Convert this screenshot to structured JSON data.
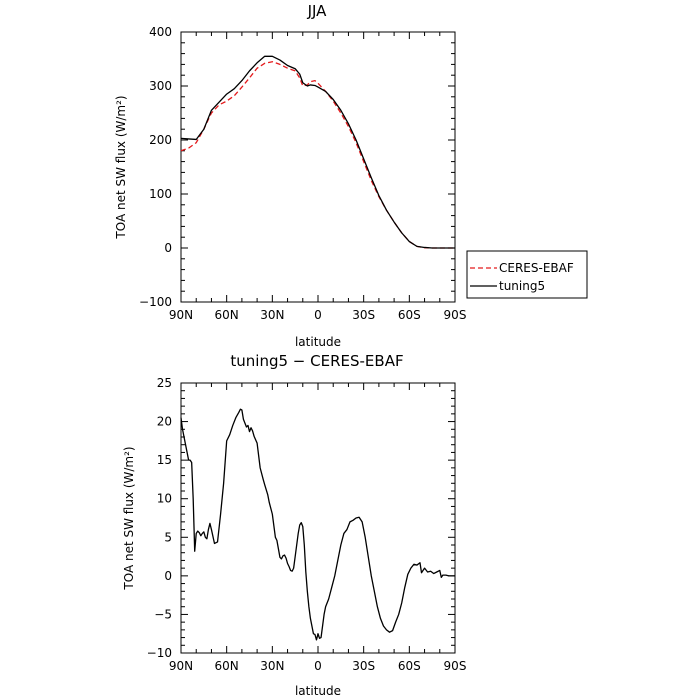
{
  "chart_data": [
    {
      "type": "line",
      "title": "JJA",
      "xlabel": "latitude",
      "ylabel": "TOA net SW flux (W/m²)",
      "xlim": [
        90,
        -90
      ],
      "ylim": [
        -100,
        400
      ],
      "xticks": [
        90,
        60,
        30,
        0,
        -30,
        -60,
        -90
      ],
      "xticklabels": [
        "90N",
        "60N",
        "30N",
        "0",
        "30S",
        "60S",
        "90S"
      ],
      "yticks": [
        -100,
        0,
        100,
        200,
        300,
        400
      ],
      "yticklabels": [
        "−100",
        "0",
        "100",
        "200",
        "300",
        "400"
      ],
      "grid": false,
      "legend": "right",
      "series": [
        {
          "name": "CERES-EBAF",
          "color": "#e41a1c",
          "dash": "dashed",
          "x": [
            90,
            85,
            80,
            75,
            70,
            65,
            60,
            55,
            50,
            45,
            40,
            35,
            30,
            25,
            20,
            15,
            12,
            10,
            7,
            5,
            2,
            0,
            -5,
            -10,
            -15,
            -20,
            -25,
            -30,
            -35,
            -40,
            -45,
            -50,
            -55,
            -60,
            -65,
            -70,
            -75,
            -80,
            -85,
            -90
          ],
          "y": [
            180,
            185,
            195,
            220,
            250,
            265,
            272,
            282,
            298,
            315,
            333,
            342,
            345,
            340,
            333,
            328,
            315,
            300,
            302,
            308,
            310,
            305,
            290,
            272,
            250,
            225,
            195,
            160,
            125,
            95,
            70,
            48,
            28,
            12,
            3,
            0.5,
            0,
            0,
            0,
            0
          ]
        },
        {
          "name": "tuning5",
          "color": "#000000",
          "dash": "solid",
          "x": [
            90,
            85,
            80,
            75,
            70,
            65,
            60,
            55,
            50,
            45,
            40,
            35,
            30,
            25,
            20,
            15,
            12,
            10,
            7,
            5,
            2,
            0,
            -5,
            -10,
            -15,
            -20,
            -25,
            -30,
            -35,
            -40,
            -45,
            -50,
            -55,
            -60,
            -65,
            -70,
            -75,
            -80,
            -85,
            -90
          ],
          "y": [
            203,
            202,
            201,
            220,
            255,
            270,
            285,
            295,
            310,
            328,
            343,
            355,
            355,
            348,
            338,
            332,
            322,
            306,
            300,
            302,
            301,
            298,
            290,
            275,
            255,
            230,
            200,
            165,
            130,
            97,
            70,
            48,
            28,
            12,
            3,
            1,
            0,
            0,
            0,
            0
          ]
        }
      ]
    },
    {
      "type": "line",
      "title": "tuning5 − CERES-EBAF",
      "xlabel": "latitude",
      "ylabel": "TOA net SW flux (W/m²)",
      "xlim": [
        90,
        -90
      ],
      "ylim": [
        -10,
        25
      ],
      "xticks": [
        90,
        60,
        30,
        0,
        -30,
        -60,
        -90
      ],
      "xticklabels": [
        "90N",
        "60N",
        "30N",
        "0",
        "30S",
        "60S",
        "90S"
      ],
      "yticks": [
        -10,
        -5,
        0,
        5,
        10,
        15,
        20,
        25
      ],
      "yticklabels": [
        "−10",
        "−5",
        "0",
        "5",
        "10",
        "15",
        "20",
        "25"
      ],
      "grid": false,
      "series": [
        {
          "color": "#000000",
          "x": [
            90,
            89,
            87,
            85,
            84,
            83,
            82,
            81,
            80,
            79,
            78,
            77,
            76,
            75,
            74,
            73,
            72,
            71,
            70,
            68,
            66,
            64,
            62,
            60,
            58,
            56,
            54,
            52,
            51,
            50,
            49,
            48,
            47,
            46,
            45,
            44,
            43,
            42,
            40,
            38,
            36,
            35,
            33,
            32,
            30,
            28,
            27,
            26,
            25,
            24,
            23,
            22,
            21,
            20,
            19,
            18,
            17,
            16,
            15,
            13,
            12,
            11,
            10,
            9,
            8,
            7,
            6,
            5,
            4,
            3,
            2,
            1,
            0,
            -1,
            -2,
            -3,
            -4,
            -5,
            -7,
            -9,
            -11,
            -13,
            -15,
            -17,
            -19,
            -21,
            -23,
            -25,
            -27,
            -29,
            -31,
            -33,
            -35,
            -37,
            -39,
            -41,
            -43,
            -45,
            -47,
            -49,
            -51,
            -53,
            -55,
            -57,
            -59,
            -61,
            -63,
            -65,
            -67,
            -68,
            -70,
            -72,
            -74,
            -76,
            -78,
            -80,
            -81,
            -82,
            -84,
            -86,
            -88,
            -90
          ],
          "y": [
            20.5,
            19,
            17,
            15,
            15,
            14.7,
            10,
            3.2,
            5.5,
            5.8,
            5.6,
            5.2,
            5.5,
            5.7,
            5,
            4.8,
            6,
            6.8,
            6,
            4.2,
            4.4,
            8,
            12,
            17.5,
            18.3,
            19.5,
            20.5,
            21.2,
            21.6,
            21.5,
            20.3,
            19.8,
            19.3,
            19.5,
            18.7,
            19.2,
            18.8,
            18.1,
            17.2,
            14,
            12.5,
            11.8,
            10.5,
            9.5,
            8,
            5,
            4.6,
            3.5,
            2.4,
            2.2,
            2.6,
            2.7,
            2.3,
            1.6,
            1.2,
            0.7,
            0.6,
            1,
            2.5,
            5.5,
            6.6,
            6.9,
            6.4,
            4,
            0.5,
            -2,
            -4,
            -5.5,
            -6.5,
            -7.5,
            -7.6,
            -8.3,
            -7.5,
            -8.1,
            -8,
            -6.5,
            -5,
            -4,
            -3,
            -1.5,
            0,
            2,
            4,
            5.5,
            6,
            7,
            7.2,
            7.5,
            7.6,
            7,
            5,
            2.5,
            0,
            -2,
            -4,
            -5.5,
            -6.5,
            -7,
            -7.3,
            -7.1,
            -6,
            -5,
            -3.5,
            -1.5,
            0.2,
            1,
            1.5,
            1.4,
            1.7,
            0.4,
            1,
            0.5,
            0.6,
            0.3,
            0.5,
            0.7,
            -0.2,
            0.1,
            0.1,
            0,
            0,
            0
          ]
        }
      ]
    }
  ]
}
